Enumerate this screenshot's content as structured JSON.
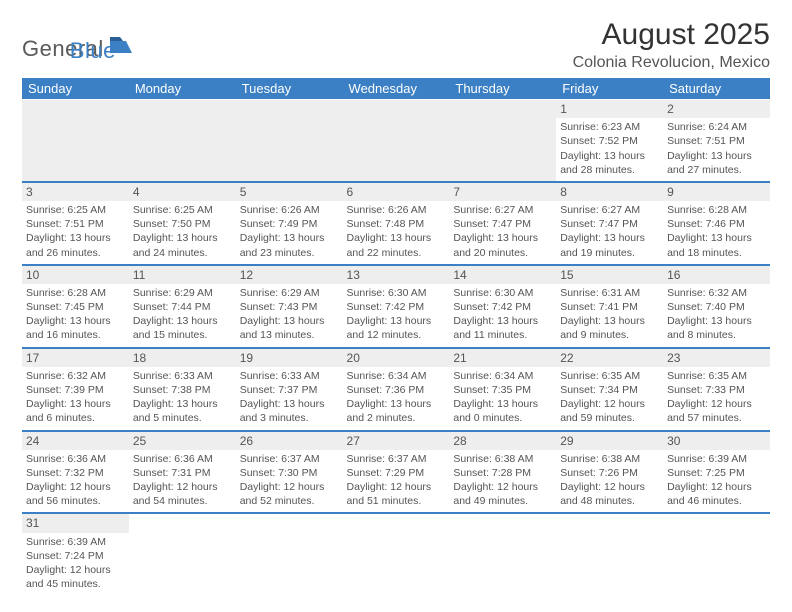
{
  "brand": {
    "general": "General",
    "blue": "Blue"
  },
  "title": "August 2025",
  "subtitle": "Colonia Revolucion, Mexico",
  "colors": {
    "header_bg": "#3b7fc4",
    "header_text": "#ffffff",
    "daynum_bg": "#eeeeee",
    "border": "#3b7fc4",
    "text": "#555555"
  },
  "daysOfWeek": [
    "Sunday",
    "Monday",
    "Tuesday",
    "Wednesday",
    "Thursday",
    "Friday",
    "Saturday"
  ],
  "weeks": [
    [
      null,
      null,
      null,
      null,
      null,
      {
        "n": "1",
        "sr": "Sunrise: 6:23 AM",
        "ss": "Sunset: 7:52 PM",
        "d1": "Daylight: 13 hours",
        "d2": "and 28 minutes."
      },
      {
        "n": "2",
        "sr": "Sunrise: 6:24 AM",
        "ss": "Sunset: 7:51 PM",
        "d1": "Daylight: 13 hours",
        "d2": "and 27 minutes."
      }
    ],
    [
      {
        "n": "3",
        "sr": "Sunrise: 6:25 AM",
        "ss": "Sunset: 7:51 PM",
        "d1": "Daylight: 13 hours",
        "d2": "and 26 minutes."
      },
      {
        "n": "4",
        "sr": "Sunrise: 6:25 AM",
        "ss": "Sunset: 7:50 PM",
        "d1": "Daylight: 13 hours",
        "d2": "and 24 minutes."
      },
      {
        "n": "5",
        "sr": "Sunrise: 6:26 AM",
        "ss": "Sunset: 7:49 PM",
        "d1": "Daylight: 13 hours",
        "d2": "and 23 minutes."
      },
      {
        "n": "6",
        "sr": "Sunrise: 6:26 AM",
        "ss": "Sunset: 7:48 PM",
        "d1": "Daylight: 13 hours",
        "d2": "and 22 minutes."
      },
      {
        "n": "7",
        "sr": "Sunrise: 6:27 AM",
        "ss": "Sunset: 7:47 PM",
        "d1": "Daylight: 13 hours",
        "d2": "and 20 minutes."
      },
      {
        "n": "8",
        "sr": "Sunrise: 6:27 AM",
        "ss": "Sunset: 7:47 PM",
        "d1": "Daylight: 13 hours",
        "d2": "and 19 minutes."
      },
      {
        "n": "9",
        "sr": "Sunrise: 6:28 AM",
        "ss": "Sunset: 7:46 PM",
        "d1": "Daylight: 13 hours",
        "d2": "and 18 minutes."
      }
    ],
    [
      {
        "n": "10",
        "sr": "Sunrise: 6:28 AM",
        "ss": "Sunset: 7:45 PM",
        "d1": "Daylight: 13 hours",
        "d2": "and 16 minutes."
      },
      {
        "n": "11",
        "sr": "Sunrise: 6:29 AM",
        "ss": "Sunset: 7:44 PM",
        "d1": "Daylight: 13 hours",
        "d2": "and 15 minutes."
      },
      {
        "n": "12",
        "sr": "Sunrise: 6:29 AM",
        "ss": "Sunset: 7:43 PM",
        "d1": "Daylight: 13 hours",
        "d2": "and 13 minutes."
      },
      {
        "n": "13",
        "sr": "Sunrise: 6:30 AM",
        "ss": "Sunset: 7:42 PM",
        "d1": "Daylight: 13 hours",
        "d2": "and 12 minutes."
      },
      {
        "n": "14",
        "sr": "Sunrise: 6:30 AM",
        "ss": "Sunset: 7:42 PM",
        "d1": "Daylight: 13 hours",
        "d2": "and 11 minutes."
      },
      {
        "n": "15",
        "sr": "Sunrise: 6:31 AM",
        "ss": "Sunset: 7:41 PM",
        "d1": "Daylight: 13 hours",
        "d2": "and 9 minutes."
      },
      {
        "n": "16",
        "sr": "Sunrise: 6:32 AM",
        "ss": "Sunset: 7:40 PM",
        "d1": "Daylight: 13 hours",
        "d2": "and 8 minutes."
      }
    ],
    [
      {
        "n": "17",
        "sr": "Sunrise: 6:32 AM",
        "ss": "Sunset: 7:39 PM",
        "d1": "Daylight: 13 hours",
        "d2": "and 6 minutes."
      },
      {
        "n": "18",
        "sr": "Sunrise: 6:33 AM",
        "ss": "Sunset: 7:38 PM",
        "d1": "Daylight: 13 hours",
        "d2": "and 5 minutes."
      },
      {
        "n": "19",
        "sr": "Sunrise: 6:33 AM",
        "ss": "Sunset: 7:37 PM",
        "d1": "Daylight: 13 hours",
        "d2": "and 3 minutes."
      },
      {
        "n": "20",
        "sr": "Sunrise: 6:34 AM",
        "ss": "Sunset: 7:36 PM",
        "d1": "Daylight: 13 hours",
        "d2": "and 2 minutes."
      },
      {
        "n": "21",
        "sr": "Sunrise: 6:34 AM",
        "ss": "Sunset: 7:35 PM",
        "d1": "Daylight: 13 hours",
        "d2": "and 0 minutes."
      },
      {
        "n": "22",
        "sr": "Sunrise: 6:35 AM",
        "ss": "Sunset: 7:34 PM",
        "d1": "Daylight: 12 hours",
        "d2": "and 59 minutes."
      },
      {
        "n": "23",
        "sr": "Sunrise: 6:35 AM",
        "ss": "Sunset: 7:33 PM",
        "d1": "Daylight: 12 hours",
        "d2": "and 57 minutes."
      }
    ],
    [
      {
        "n": "24",
        "sr": "Sunrise: 6:36 AM",
        "ss": "Sunset: 7:32 PM",
        "d1": "Daylight: 12 hours",
        "d2": "and 56 minutes."
      },
      {
        "n": "25",
        "sr": "Sunrise: 6:36 AM",
        "ss": "Sunset: 7:31 PM",
        "d1": "Daylight: 12 hours",
        "d2": "and 54 minutes."
      },
      {
        "n": "26",
        "sr": "Sunrise: 6:37 AM",
        "ss": "Sunset: 7:30 PM",
        "d1": "Daylight: 12 hours",
        "d2": "and 52 minutes."
      },
      {
        "n": "27",
        "sr": "Sunrise: 6:37 AM",
        "ss": "Sunset: 7:29 PM",
        "d1": "Daylight: 12 hours",
        "d2": "and 51 minutes."
      },
      {
        "n": "28",
        "sr": "Sunrise: 6:38 AM",
        "ss": "Sunset: 7:28 PM",
        "d1": "Daylight: 12 hours",
        "d2": "and 49 minutes."
      },
      {
        "n": "29",
        "sr": "Sunrise: 6:38 AM",
        "ss": "Sunset: 7:26 PM",
        "d1": "Daylight: 12 hours",
        "d2": "and 48 minutes."
      },
      {
        "n": "30",
        "sr": "Sunrise: 6:39 AM",
        "ss": "Sunset: 7:25 PM",
        "d1": "Daylight: 12 hours",
        "d2": "and 46 minutes."
      }
    ],
    [
      {
        "n": "31",
        "sr": "Sunrise: 6:39 AM",
        "ss": "Sunset: 7:24 PM",
        "d1": "Daylight: 12 hours",
        "d2": "and 45 minutes."
      },
      null,
      null,
      null,
      null,
      null,
      null
    ]
  ]
}
